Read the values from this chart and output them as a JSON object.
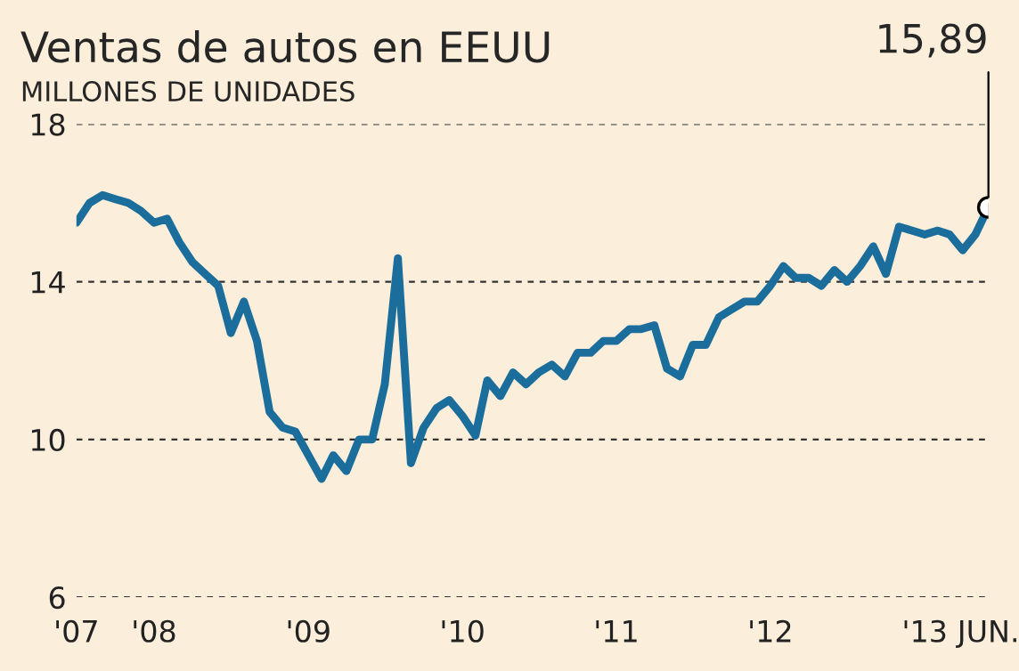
{
  "chart_data": {
    "type": "line",
    "title": "Ventas de autos en EEUU",
    "subtitle": "MILLONES DE UNIDADES",
    "x": [
      "2007-07",
      "2007-08",
      "2007-09",
      "2007-10",
      "2007-11",
      "2007-12",
      "2008-01",
      "2008-02",
      "2008-03",
      "2008-04",
      "2008-05",
      "2008-06",
      "2008-07",
      "2008-08",
      "2008-09",
      "2008-10",
      "2008-11",
      "2008-12",
      "2009-01",
      "2009-02",
      "2009-03",
      "2009-04",
      "2009-05",
      "2009-06",
      "2009-07",
      "2009-08",
      "2009-09",
      "2009-10",
      "2009-11",
      "2009-12",
      "2010-01",
      "2010-02",
      "2010-03",
      "2010-04",
      "2010-05",
      "2010-06",
      "2010-07",
      "2010-08",
      "2010-09",
      "2010-10",
      "2010-11",
      "2010-12",
      "2011-01",
      "2011-02",
      "2011-03",
      "2011-04",
      "2011-05",
      "2011-06",
      "2011-07",
      "2011-08",
      "2011-09",
      "2011-10",
      "2011-11",
      "2011-12",
      "2012-01",
      "2012-02",
      "2012-03",
      "2012-04",
      "2012-05",
      "2012-06",
      "2012-07",
      "2012-08",
      "2012-09",
      "2012-10",
      "2012-11",
      "2012-12",
      "2013-01",
      "2013-02",
      "2013-03",
      "2013-04",
      "2013-05",
      "2013-06"
    ],
    "series": [
      {
        "color": "#1b6e9b",
        "values": [
          15.5,
          16.0,
          16.2,
          16.1,
          16.0,
          15.8,
          15.5,
          15.6,
          15.0,
          14.5,
          14.2,
          13.9,
          12.7,
          13.5,
          12.5,
          10.7,
          10.3,
          10.2,
          9.6,
          9.0,
          9.6,
          9.2,
          10.0,
          10.0,
          11.4,
          14.6,
          9.4,
          10.3,
          10.8,
          11.0,
          10.6,
          10.1,
          11.5,
          11.1,
          11.7,
          11.4,
          11.7,
          11.9,
          11.6,
          12.2,
          12.2,
          12.5,
          12.5,
          12.8,
          12.8,
          12.9,
          11.8,
          11.6,
          12.4,
          12.4,
          13.1,
          13.3,
          13.5,
          13.5,
          13.9,
          14.4,
          14.1,
          14.1,
          13.9,
          14.3,
          14.0,
          14.4,
          14.9,
          14.2,
          15.4,
          15.3,
          15.2,
          15.3,
          15.2,
          14.8,
          15.2,
          15.89
        ]
      }
    ],
    "xlim": [
      "2007-07",
      "2013-06"
    ],
    "xticks": [
      {
        "value": "2007-07",
        "label": "'07"
      },
      {
        "value": "2008-01",
        "label": "'08"
      },
      {
        "value": "2009-01",
        "label": "'09"
      },
      {
        "value": "2010-01",
        "label": "'10"
      },
      {
        "value": "2011-01",
        "label": "'11"
      },
      {
        "value": "2012-01",
        "label": "'12"
      },
      {
        "value": "2013-01",
        "label": "'13"
      },
      {
        "value": "2013-06",
        "label": "JUN."
      }
    ],
    "ylim": [
      6,
      18
    ],
    "yticks": [
      6,
      10,
      14,
      18
    ],
    "grid": "y",
    "annotations": [
      {
        "text": "15,89",
        "x": "2013-06",
        "y": 15.89
      }
    ]
  }
}
